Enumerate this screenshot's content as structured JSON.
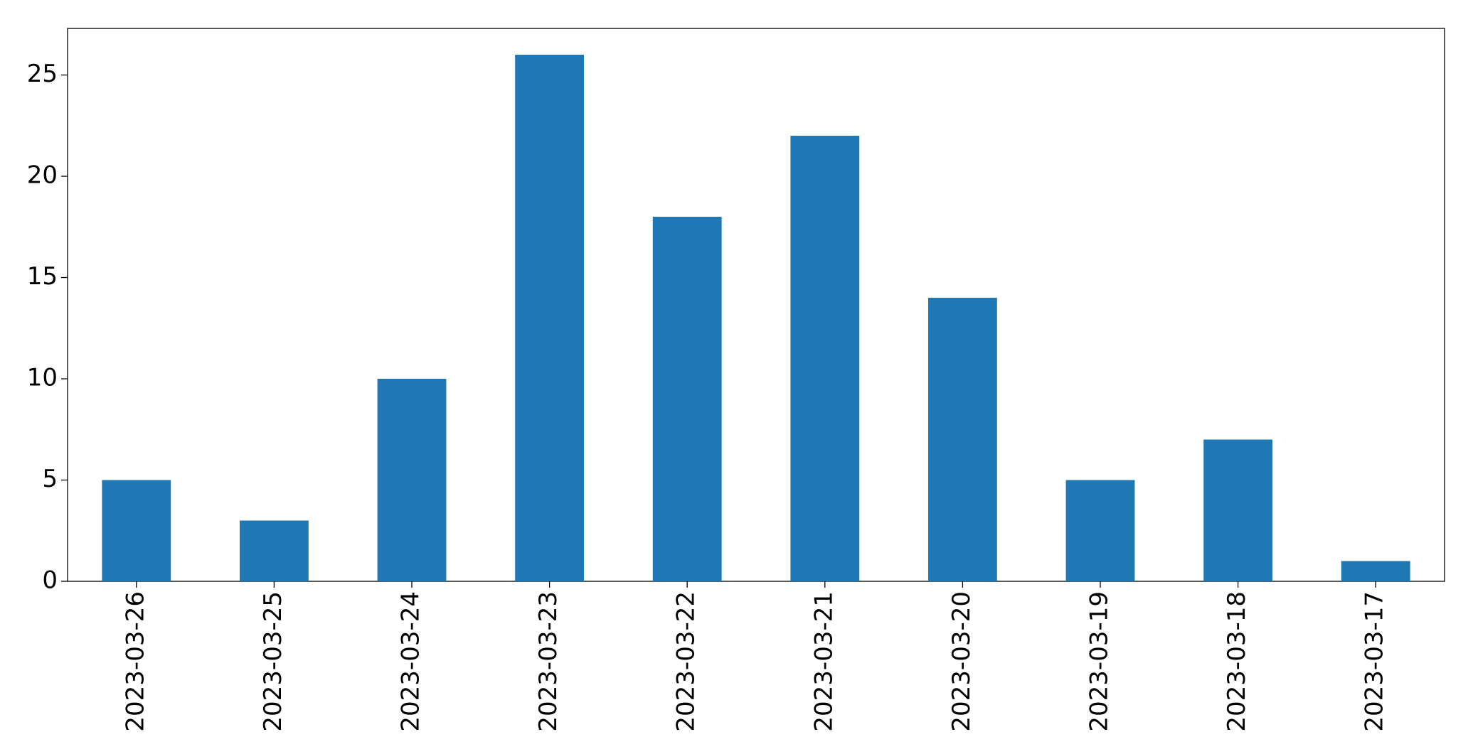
{
  "chart_data": {
    "type": "bar",
    "categories": [
      "2023-03-26",
      "2023-03-25",
      "2023-03-24",
      "2023-03-23",
      "2023-03-22",
      "2023-03-21",
      "2023-03-20",
      "2023-03-19",
      "2023-03-18",
      "2023-03-17"
    ],
    "values": [
      5,
      3,
      10,
      26,
      18,
      22,
      14,
      5,
      7,
      1
    ],
    "color": "#1f77b4",
    "ylim": [
      0,
      27.3
    ],
    "yticks": [
      0,
      5,
      10,
      15,
      20,
      25
    ],
    "grid": false
  }
}
